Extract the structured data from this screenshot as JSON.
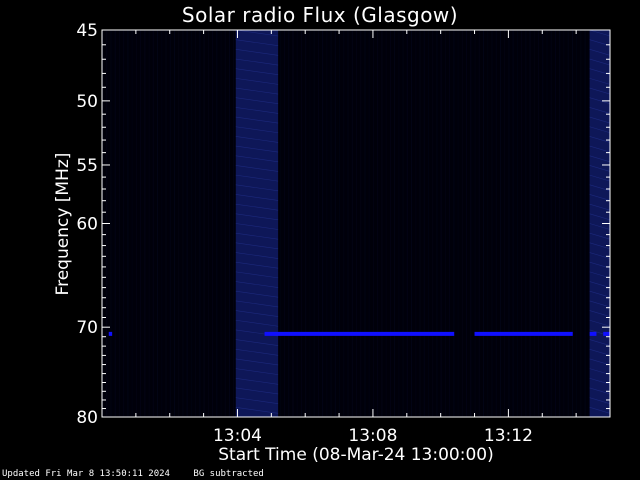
{
  "chart_data": {
    "type": "heatmap",
    "title": "Solar radio Flux (Glasgow)",
    "xlabel": "Start Time (08-Mar-24 13:00:00)",
    "ylabel": "Frequency [MHz]",
    "x_range_minutes": [
      0,
      15.0
    ],
    "x_ticks": [
      {
        "minute": 4,
        "label": "13:04"
      },
      {
        "minute": 8,
        "label": "13:08"
      },
      {
        "minute": 12,
        "label": "13:12"
      }
    ],
    "y_range_mhz": [
      45,
      80
    ],
    "y_scale": "log",
    "y_ticks": [
      45,
      50,
      55,
      60,
      70,
      80
    ],
    "colormap": "black-blue",
    "features": [
      {
        "kind": "band",
        "start_minute": 3.95,
        "end_minute": 5.2,
        "intensity": "moderate"
      },
      {
        "kind": "band",
        "start_minute": 14.4,
        "end_minute": 15.0,
        "intensity": "moderate"
      },
      {
        "kind": "interference_line",
        "frequency_mhz": 70.7,
        "segments": [
          [
            0.2,
            0.3
          ],
          [
            4.8,
            10.4
          ],
          [
            11.0,
            13.9
          ],
          [
            14.4,
            14.6
          ],
          [
            14.8,
            15.0
          ]
        ]
      }
    ],
    "grid": false,
    "legend": "none"
  },
  "footer": {
    "updated": "Updated Fri Mar  8 13:50:11 2024",
    "note": "BG subtracted"
  },
  "colors": {
    "background": "#000000",
    "axes": "#ffffff",
    "signal": "#1010ff",
    "band": "#101a60"
  }
}
